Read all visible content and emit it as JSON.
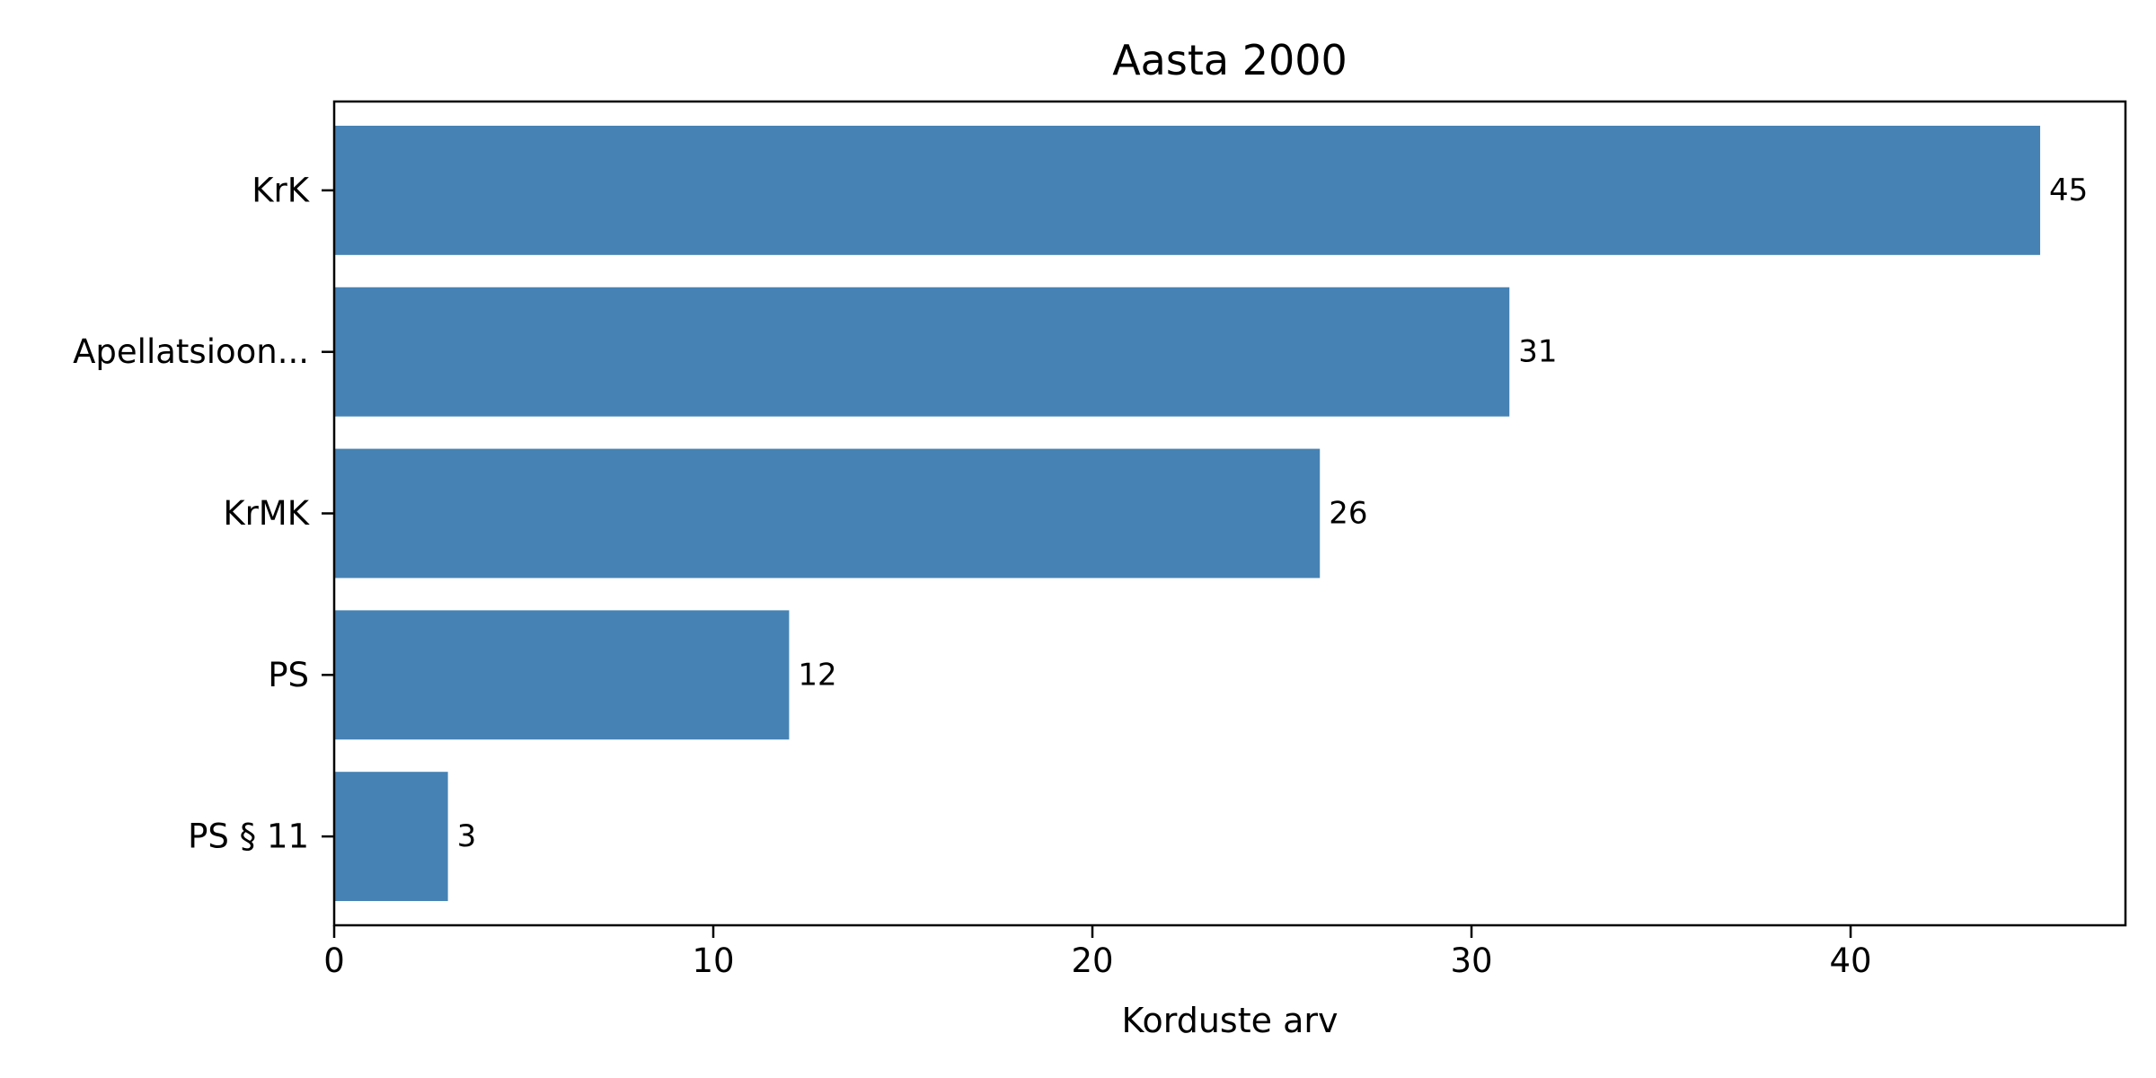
{
  "chart_data": {
    "type": "bar",
    "orientation": "horizontal",
    "title": "Aasta 2000",
    "xlabel": "Korduste arv",
    "ylabel": "",
    "categories": [
      "KrK",
      "Apellatsioon...",
      "KrMK",
      "PS",
      "PS § 11"
    ],
    "values": [
      45,
      31,
      26,
      12,
      3
    ],
    "data_labels": [
      "45",
      "31",
      "26",
      "12",
      "3"
    ],
    "xlim": [
      0,
      47.25
    ],
    "x_ticks": [
      0,
      10,
      20,
      30,
      40
    ],
    "x_tick_labels": [
      "0",
      "10",
      "20",
      "30",
      "40"
    ],
    "grid": false,
    "legend": "none",
    "bar_color": "#4682b4"
  }
}
